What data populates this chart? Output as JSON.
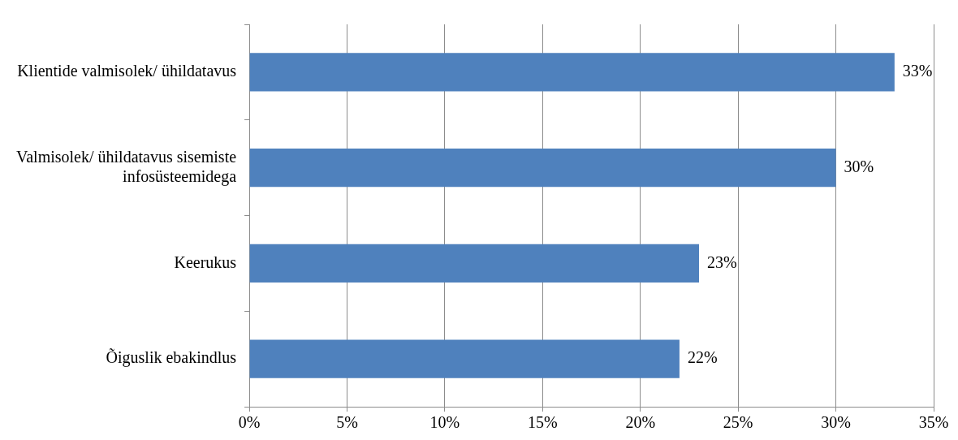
{
  "chart_data": {
    "type": "bar",
    "orientation": "horizontal",
    "categories": [
      "Klientide valmisolek/ ühildatavus",
      "Valmisolek/ ühildatavus sisemiste infosüsteemidega",
      "Keerukus",
      "Õiguslik ebakindlus"
    ],
    "values": [
      33,
      30,
      23,
      22
    ],
    "color": "#4f81bd",
    "value_labels": [
      "33%",
      "30%",
      "23%",
      "22%"
    ],
    "xlim": [
      0,
      35
    ],
    "xticks": [
      {
        "value": 0,
        "label": "0%"
      },
      {
        "value": 5,
        "label": "5%"
      },
      {
        "value": 10,
        "label": "10%"
      },
      {
        "value": 15,
        "label": "15%"
      },
      {
        "value": 20,
        "label": "20%"
      },
      {
        "value": 25,
        "label": "25%"
      },
      {
        "value": 30,
        "label": "30%"
      },
      {
        "value": 35,
        "label": "35%"
      }
    ],
    "grid": "x",
    "legend": false
  }
}
